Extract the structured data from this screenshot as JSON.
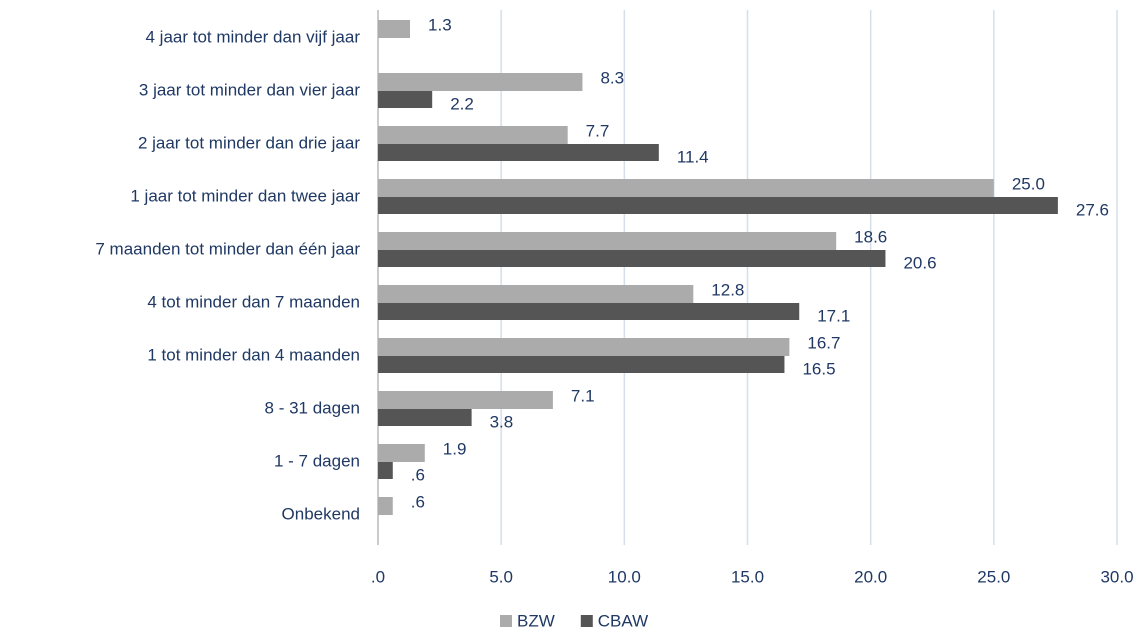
{
  "chart_data": {
    "type": "barh",
    "categories": [
      "4 jaar tot minder dan vijf jaar",
      "3 jaar tot minder dan vier jaar",
      "2 jaar tot minder dan drie jaar",
      "1 jaar tot minder dan twee jaar",
      "7 maanden tot minder dan één jaar",
      "4 tot minder dan 7 maanden",
      "1 tot minder dan 4 maanden",
      "8 -  31 dagen",
      "1 - 7 dagen",
      "Onbekend"
    ],
    "series": [
      {
        "name": "BZW",
        "color": "#ababab",
        "values": [
          1.3,
          8.3,
          7.7,
          25.0,
          18.6,
          12.8,
          16.7,
          7.1,
          1.9,
          0.6
        ],
        "value_labels": [
          "1.3",
          "8.3",
          "7.7",
          "25.0",
          "18.6",
          "12.8",
          "16.7",
          "7.1",
          "1.9",
          ".6"
        ]
      },
      {
        "name": "CBAW",
        "color": "#555555",
        "values": [
          null,
          2.2,
          11.4,
          27.6,
          20.6,
          17.1,
          16.5,
          3.8,
          0.6,
          null
        ],
        "value_labels": [
          null,
          "2.2",
          "11.4",
          "27.6",
          "20.6",
          "17.1",
          "16.5",
          "3.8",
          ".6",
          null
        ]
      }
    ],
    "xlim": [
      0,
      30
    ],
    "xticks": [
      {
        "value": 0,
        "label": ".0"
      },
      {
        "value": 5,
        "label": "5.0"
      },
      {
        "value": 10,
        "label": "10.0"
      },
      {
        "value": 15,
        "label": "15.0"
      },
      {
        "value": 20,
        "label": "20.0"
      },
      {
        "value": 25,
        "label": "25.0"
      },
      {
        "value": 30,
        "label": "30.0"
      }
    ],
    "grid": true,
    "legend": "bottom"
  }
}
